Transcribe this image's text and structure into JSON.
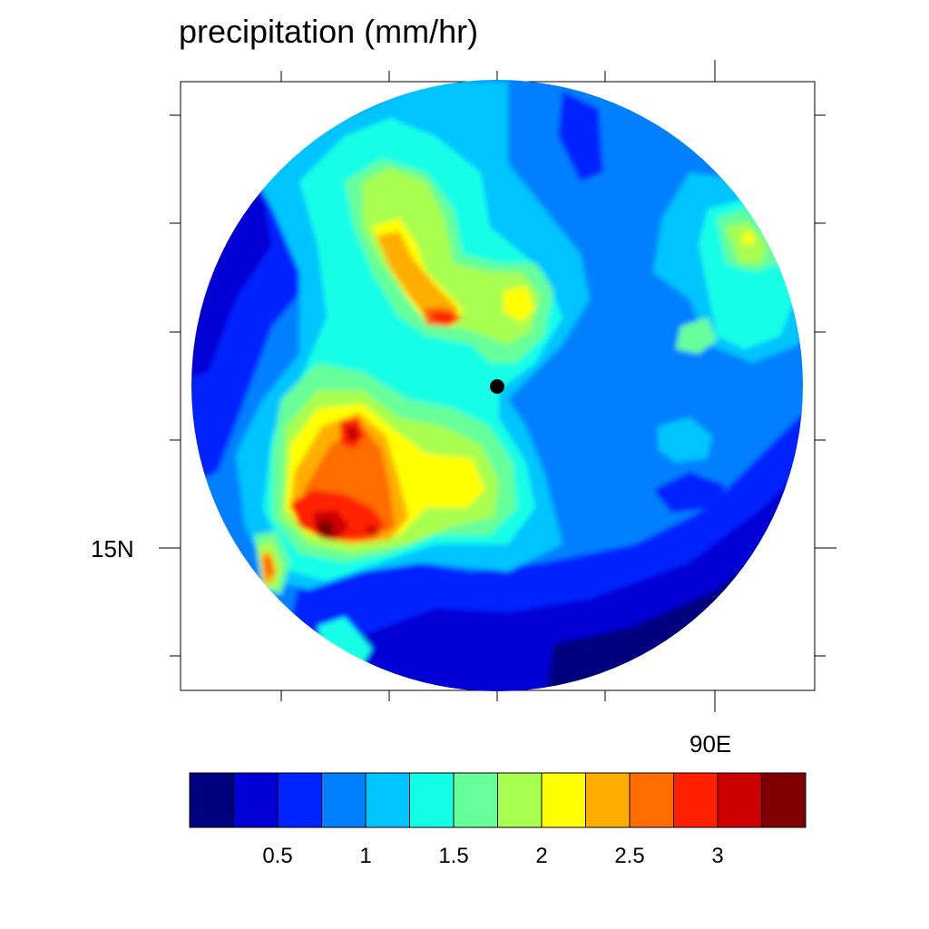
{
  "title": "precipitation (mm/hr)",
  "axes": {
    "lat_label": "15N",
    "lon_label": "90E"
  },
  "marker": {
    "name": "center-point",
    "color": "#000000"
  },
  "colorbar": {
    "levels": [
      0.25,
      0.5,
      0.75,
      1,
      1.25,
      1.5,
      1.75,
      2,
      2.25,
      2.5,
      2.75,
      3,
      3.25
    ],
    "colors": [
      "#00007f",
      "#0000d5",
      "#0024ff",
      "#0080ff",
      "#00c4ff",
      "#12ffe6",
      "#66ff9a",
      "#a8ff50",
      "#ffff00",
      "#ffae00",
      "#ff6c00",
      "#ff2000",
      "#cc0000",
      "#7f0000"
    ],
    "tick_labels": [
      "0.5",
      "1",
      "1.5",
      "2",
      "2.5",
      "3"
    ]
  }
}
